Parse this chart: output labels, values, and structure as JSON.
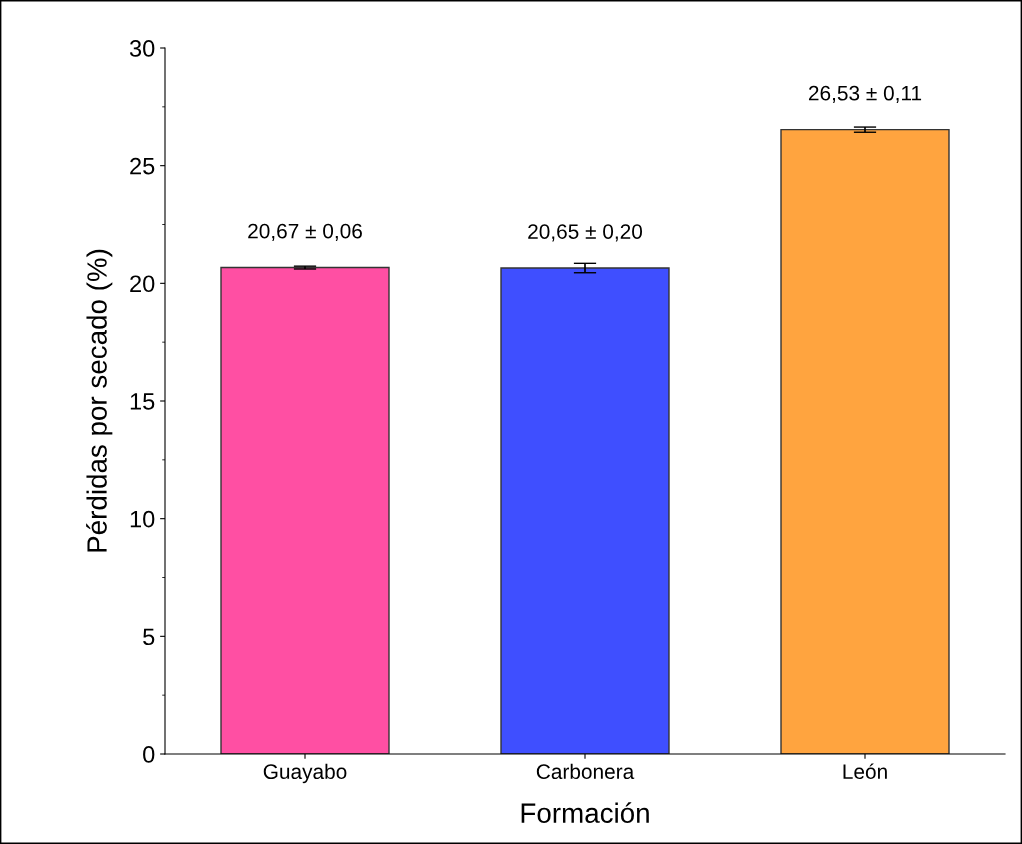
{
  "chart_data": {
    "type": "bar",
    "xlabel": "Formación",
    "ylabel": "Pérdidas por secado (%)",
    "categories": [
      "Guayabo",
      "Carbonera",
      "León"
    ],
    "values": [
      20.67,
      20.65,
      26.53
    ],
    "errors": [
      0.06,
      0.2,
      0.11
    ],
    "value_labels": [
      "20,67 ± 0,06",
      "20,65 ± 0,20",
      "26,53 ± 0,11"
    ],
    "colors": [
      "#ff4fa3",
      "#3f4fff",
      "#ffa43f"
    ],
    "ylim": [
      0,
      30
    ],
    "yticks": [
      0,
      5,
      10,
      15,
      20,
      25,
      30
    ],
    "grid": false
  }
}
